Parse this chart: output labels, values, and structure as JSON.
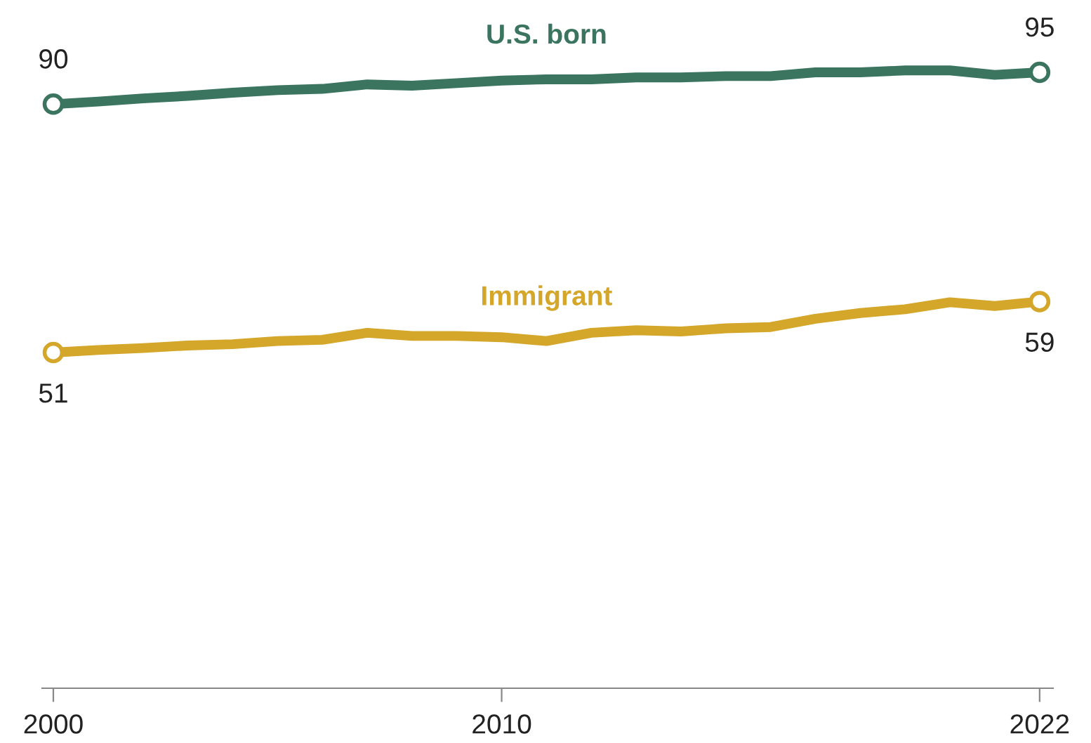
{
  "chart_data": {
    "type": "line",
    "x": [
      2000,
      2001,
      2002,
      2003,
      2004,
      2005,
      2006,
      2007,
      2008,
      2009,
      2010,
      2011,
      2012,
      2013,
      2014,
      2015,
      2016,
      2017,
      2018,
      2019,
      2020,
      2021,
      2022
    ],
    "series": [
      {
        "name": "U.S. born",
        "color": "#3b7560",
        "values": [
          90,
          90.4,
          90.9,
          91.3,
          91.8,
          92.2,
          92.4,
          93.1,
          92.9,
          93.3,
          93.7,
          93.9,
          93.9,
          94.2,
          94.2,
          94.4,
          94.4,
          95.0,
          95.0,
          95.3,
          95.3,
          94.6,
          95
        ],
        "value_labels": [
          "90",
          null,
          null,
          null,
          null,
          null,
          null,
          null,
          null,
          null,
          null,
          null,
          null,
          null,
          null,
          null,
          null,
          null,
          null,
          null,
          null,
          null,
          "95"
        ]
      },
      {
        "name": "Immigrant",
        "color": "#d4a62a",
        "values": [
          51,
          51.4,
          51.7,
          52.1,
          52.3,
          52.8,
          53.0,
          54.1,
          53.6,
          53.6,
          53.4,
          52.8,
          54.1,
          54.5,
          54.3,
          54.8,
          55.0,
          56.3,
          57.2,
          57.8,
          58.9,
          58.3,
          59
        ],
        "value_labels": [
          "51",
          null,
          null,
          null,
          null,
          null,
          null,
          null,
          null,
          null,
          null,
          null,
          null,
          null,
          null,
          null,
          null,
          null,
          null,
          null,
          null,
          null,
          "59"
        ]
      }
    ],
    "xlim": [
      1999.75,
      2022.3
    ],
    "xticks": [
      2000,
      2010,
      2022
    ],
    "line_style": "solid",
    "grid": false,
    "legend": false
  }
}
